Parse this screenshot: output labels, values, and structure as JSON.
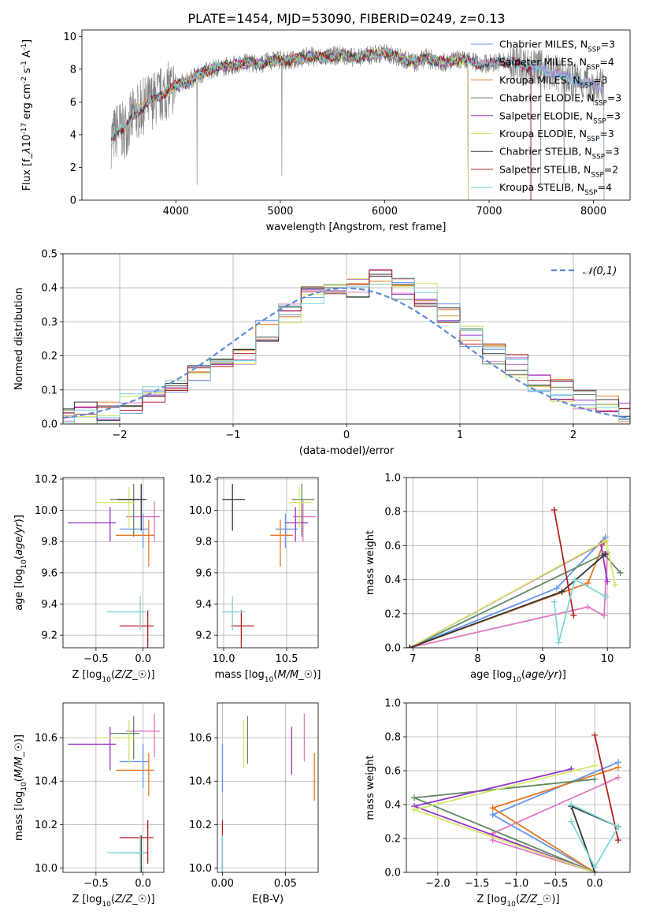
{
  "figure_title": "PLATE=1454, MJD=53090, FIBERID=0249, z=0.13",
  "chart_data": [
    {
      "id": "spectrum",
      "type": "line",
      "xlabel": "wavelength [Angstrom, rest frame]",
      "ylabel": "Flux [f$_\\lambda$10$^{-17}$ erg cm$^{-2}$ s$^{-1}$ A$^{-1}$]",
      "xlim": [
        3100,
        8350
      ],
      "ylim": [
        0,
        10.4
      ],
      "xticks": [
        4000,
        5000,
        6000,
        7000,
        8000
      ],
      "yticks": [
        0,
        2,
        4,
        6,
        8,
        10
      ],
      "grid": false,
      "legend_position": "right",
      "data_series": {
        "name": "data",
        "color": "#808080",
        "x": [
          3380,
          3450,
          3500,
          3600,
          3700,
          3800,
          3900,
          4000,
          4100,
          4200,
          4300,
          4400,
          4500,
          4600,
          4700,
          4800,
          4900,
          5000,
          5100,
          5200,
          5300,
          5400,
          5500,
          5600,
          5700,
          5800,
          5900,
          6000,
          6100,
          6200,
          6300,
          6400,
          6500,
          6600,
          6700,
          6800,
          6900,
          7000,
          7100,
          7200,
          7300,
          7400,
          7500,
          7600,
          7700,
          7800,
          7900,
          8000,
          8100
        ],
        "y": [
          3.7,
          4.4,
          4.2,
          5.2,
          5.8,
          6.2,
          6.6,
          7.0,
          7.2,
          7.6,
          7.9,
          8.1,
          8.2,
          8.3,
          8.4,
          8.3,
          8.5,
          8.6,
          8.5,
          8.7,
          8.8,
          8.7,
          8.8,
          8.9,
          8.7,
          8.8,
          8.9,
          9.0,
          8.8,
          8.6,
          8.4,
          8.7,
          8.5,
          8.4,
          8.6,
          8.5,
          8.4,
          8.3,
          8.5,
          8.4,
          8.3,
          8.1,
          8.0,
          7.8,
          7.6,
          7.4,
          7.2,
          7.0,
          6.8
        ]
      },
      "series": [
        {
          "name": "Chabrier MILES, N$_{SSP}$=3",
          "color": "#6495ED",
          "x": [
            3520,
            8100
          ]
        },
        {
          "name": "Salpeter MILES, N$_{SSP}$=4",
          "color": "#E377C2",
          "x": [
            3520,
            8100
          ]
        },
        {
          "name": "Kroupa MILES, N$_{SSP}$=3",
          "color": "#E87722",
          "x": [
            3520,
            6800
          ]
        },
        {
          "name": "Chabrier ELODIE, N$_{SSP}$=3",
          "color": "#5F8A5F",
          "x": [
            3900,
            6800
          ]
        },
        {
          "name": "Salpeter ELODIE, N$_{SSP}$=3",
          "color": "#9932CC",
          "x": [
            3900,
            6800
          ]
        },
        {
          "name": "Kroupa ELODIE, N$_{SSP}$=3",
          "color": "#D4E86A",
          "x": [
            3900,
            6800
          ]
        },
        {
          "name": "Chabrier STELIB, N$_{SSP}$=3",
          "color": "#333333",
          "x": [
            3380,
            7400
          ]
        },
        {
          "name": "Salpeter STELIB, N$_{SSP}$=2",
          "color": "#B22222",
          "x": [
            3380,
            7400
          ]
        },
        {
          "name": "Kroupa STELIB, N$_{SSP}$=4",
          "color": "#7FD6D6",
          "x": [
            3380,
            8100
          ]
        }
      ]
    },
    {
      "id": "residuals",
      "type": "line",
      "xlabel": "(data-model)/error",
      "ylabel": "Normed distribution",
      "xlim": [
        -2.5,
        2.5
      ],
      "ylim": [
        0,
        0.5
      ],
      "xticks": [
        -2,
        -1,
        0,
        1,
        2
      ],
      "yticks": [
        0.0,
        0.1,
        0.2,
        0.3,
        0.4,
        0.5
      ],
      "grid": true,
      "legend_position": "top-right",
      "legend": [
        {
          "name": "$\\mathcal{N}(0,1)$",
          "color": "#5B8DD6",
          "style": "dashed"
        }
      ],
      "bin_edges": [
        -2.6,
        -2.4,
        -2.2,
        -2.0,
        -1.8,
        -1.6,
        -1.4,
        -1.2,
        -1.0,
        -0.8,
        -0.6,
        -0.4,
        -0.2,
        0.0,
        0.2,
        0.4,
        0.6,
        0.8,
        1.0,
        1.2,
        1.4,
        1.6,
        1.8,
        2.0,
        2.2,
        2.4,
        2.6
      ],
      "hist_base": [
        0.02,
        0.03,
        0.04,
        0.06,
        0.08,
        0.1,
        0.14,
        0.17,
        0.21,
        0.27,
        0.32,
        0.37,
        0.4,
        0.4,
        0.42,
        0.4,
        0.38,
        0.33,
        0.26,
        0.21,
        0.17,
        0.13,
        0.1,
        0.07,
        0.05,
        0.03
      ]
    },
    {
      "id": "z-age",
      "type": "scatter",
      "xlabel": "Z [log$_{10}$($Z/Z_\\odot$)]",
      "ylabel": "age  [log$_{10}$($age/yr$)]",
      "xlim": [
        -0.85,
        0.22
      ],
      "ylim": [
        9.12,
        10.21
      ],
      "xticks": [
        -0.5,
        0.0
      ],
      "yticks": [
        9.2,
        9.4,
        9.6,
        9.8,
        10.0,
        10.2
      ],
      "grid": true
    },
    {
      "id": "mass-age",
      "type": "scatter",
      "xlabel": "mass [log$_{10}$($M/M_\\odot$)]",
      "ylabel": "",
      "xlim": [
        9.95,
        10.75
      ],
      "ylim": [
        9.12,
        10.21
      ],
      "xticks": [
        10.0,
        10.5
      ],
      "yticks": [
        9.2,
        9.4,
        9.6,
        9.8,
        10.0,
        10.2
      ],
      "grid": true
    },
    {
      "id": "age-weight",
      "type": "line",
      "xlabel": "age  [log$_{10}$($age/yr$)]",
      "ylabel": "mass weight",
      "xlim": [
        6.9,
        10.35
      ],
      "ylim": [
        0,
        1
      ],
      "xticks": [
        7,
        8,
        9,
        10
      ],
      "yticks": [
        0.0,
        0.2,
        0.4,
        0.6,
        0.8,
        1.0
      ],
      "grid": true
    },
    {
      "id": "z-mass",
      "type": "scatter",
      "xlabel": "Z [log$_{10}$($Z/Z_\\odot$)]",
      "ylabel": "mass [log$_{10}$($M/M_\\odot$)]",
      "xlim": [
        -0.85,
        0.22
      ],
      "ylim": [
        9.98,
        10.76
      ],
      "xticks": [
        -0.5,
        0.0
      ],
      "yticks": [
        10.0,
        10.2,
        10.4,
        10.6
      ],
      "grid": true
    },
    {
      "id": "ebv-mass",
      "type": "scatter",
      "xlabel": "E(B-V)",
      "ylabel": "",
      "xlim": [
        -0.004,
        0.076
      ],
      "ylim": [
        9.98,
        10.76
      ],
      "xticks": [
        0.0,
        0.05
      ],
      "yticks": [
        10.0,
        10.2,
        10.4,
        10.6
      ],
      "grid": true
    },
    {
      "id": "z-weight",
      "type": "line",
      "xlabel": "Z [log$_{10}$($Z/Z_\\odot$)]",
      "ylabel": "mass weight",
      "xlim": [
        -2.4,
        0.45
      ],
      "ylim": [
        0,
        1
      ],
      "xticks": [
        -2.0,
        -1.5,
        -1.0,
        -0.5,
        0.0
      ],
      "yticks": [
        0.0,
        0.2,
        0.4,
        0.6,
        0.8,
        1.0
      ],
      "grid": true
    }
  ],
  "models": [
    {
      "color": "#6495ED",
      "Z": 0.0,
      "age": 9.88,
      "mass": 10.49,
      "ebv": 0.0,
      "ages": [
        6.95,
        9.22,
        9.97
      ],
      "zs": [
        0.0,
        -1.3,
        0.3
      ],
      "w": [
        0.0,
        0.35,
        0.65
      ],
      "wt": [
        0.0,
        0.34,
        0.65
      ]
    },
    {
      "color": "#E377C2",
      "Z": 0.12,
      "age": 9.96,
      "mass": 10.63,
      "ebv": 0.065,
      "ages": [
        6.95,
        9.7,
        9.95,
        10.0
      ],
      "zs": [
        0.0,
        -1.3,
        -1.3,
        0.3
      ],
      "w": [
        0.0,
        0.24,
        0.19,
        0.56
      ],
      "wt": [
        0.0,
        0.19,
        0.23,
        0.56
      ]
    },
    {
      "color": "#E87722",
      "Z": 0.06,
      "age": 9.84,
      "mass": 10.45,
      "ebv": 0.073,
      "ages": [
        6.95,
        9.7,
        9.95
      ],
      "zs": [
        0.0,
        -1.3,
        0.3
      ],
      "w": [
        0.0,
        0.38,
        0.62
      ],
      "wt": [
        0.0,
        0.38,
        0.62
      ]
    },
    {
      "color": "#5F8A5F",
      "Z": -0.1,
      "age": 10.07,
      "mass": 10.62,
      "ebv": 0.02,
      "ages": [
        6.95,
        9.95,
        10.2
      ],
      "zs": [
        0.0,
        -2.3,
        0.0
      ],
      "w": [
        0.0,
        0.55,
        0.44
      ],
      "wt": [
        0.0,
        0.44,
        0.55
      ]
    },
    {
      "color": "#9932CC",
      "Z": -0.35,
      "age": 9.92,
      "mass": 10.57,
      "ebv": 0.055,
      "ages": [
        6.95,
        9.9,
        10.0
      ],
      "zs": [
        0.0,
        -2.3,
        -0.3
      ],
      "w": [
        0.0,
        0.61,
        0.39
      ],
      "wt": [
        0.0,
        0.39,
        0.61
      ]
    },
    {
      "color": "#D4E86A",
      "Z": -0.15,
      "age": 10.05,
      "mass": 10.6,
      "ebv": 0.017,
      "ages": [
        6.95,
        9.98,
        10.12
      ],
      "zs": [
        0.0,
        -2.3,
        0.0
      ],
      "w": [
        0.0,
        0.63,
        0.37
      ],
      "wt": [
        0.0,
        0.37,
        0.63
      ]
    },
    {
      "color": "#333333",
      "Z": -0.02,
      "age": 10.07,
      "mass": 10.07,
      "ebv": 0.0,
      "ages": [
        6.95,
        9.3,
        9.97
      ],
      "zs": [
        0.0,
        -0.3,
        0.3
      ],
      "w": [
        0.0,
        0.33,
        0.55
      ],
      "wt": [
        0.0,
        0.39,
        0.27
      ]
    },
    {
      "color": "#B22222",
      "Z": 0.05,
      "age": 9.26,
      "mass": 10.14,
      "ebv": 0.0,
      "ages": [
        9.18,
        9.48
      ],
      "zs": [
        0.0,
        0.3
      ],
      "w": [
        0.81,
        0.19
      ],
      "wt": [
        0.81,
        0.19
      ]
    },
    {
      "color": "#7FD6D6",
      "Z": -0.03,
      "age": 9.35,
      "mass": 10.07,
      "ebv": 0.0,
      "ages": [
        9.18,
        9.25,
        9.5,
        9.98
      ],
      "zs": [
        -0.3,
        0.0,
        0.3,
        -0.3
      ],
      "w": [
        0.27,
        0.03,
        0.4,
        0.3
      ],
      "wt": [
        0.3,
        0.03,
        0.27,
        0.4
      ]
    }
  ]
}
